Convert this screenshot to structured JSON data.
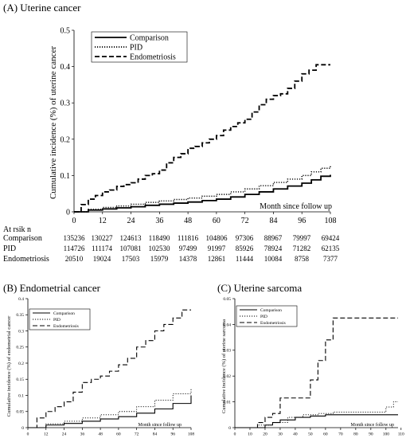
{
  "panels": [
    {
      "title": "(A) Uterine cancer",
      "chart_data": {
        "type": "line",
        "xlabel": "Month since follow up",
        "ylabel": "Cumulative incidence (%) of uterine cancer",
        "xlim": [
          0,
          108
        ],
        "ylim": [
          0,
          0.5
        ],
        "xticks": [
          0,
          12,
          24,
          36,
          48,
          60,
          72,
          84,
          96,
          108
        ],
        "yticks": [
          0,
          0.1,
          0.2,
          0.3,
          0.4,
          0.5
        ],
        "legend_position": "top-left",
        "series": [
          {
            "name": "Comparison",
            "style": "solid",
            "x": [
              0,
              6,
              12,
              18,
              24,
              30,
              36,
              42,
              48,
              54,
              60,
              66,
              72,
              78,
              84,
              90,
              96,
              100,
              104,
              108
            ],
            "y": [
              0,
              0.005,
              0.008,
              0.011,
              0.014,
              0.018,
              0.021,
              0.024,
              0.027,
              0.031,
              0.035,
              0.041,
              0.048,
              0.055,
              0.063,
              0.071,
              0.079,
              0.088,
              0.098,
              0.102
            ]
          },
          {
            "name": "PID",
            "style": "dotted",
            "x": [
              0,
              6,
              12,
              18,
              24,
              30,
              36,
              42,
              48,
              54,
              60,
              66,
              72,
              78,
              84,
              90,
              96,
              100,
              104,
              108
            ],
            "y": [
              0,
              0.007,
              0.012,
              0.016,
              0.021,
              0.026,
              0.03,
              0.034,
              0.038,
              0.043,
              0.048,
              0.055,
              0.063,
              0.072,
              0.081,
              0.09,
              0.1,
              0.11,
              0.12,
              0.128
            ]
          },
          {
            "name": "Endometriosis",
            "style": "dashed",
            "x": [
              0,
              3,
              6,
              9,
              12,
              15,
              18,
              21,
              24,
              27,
              30,
              33,
              36,
              39,
              42,
              45,
              48,
              51,
              54,
              57,
              60,
              63,
              66,
              69,
              72,
              75,
              78,
              81,
              84,
              87,
              90,
              93,
              96,
              99,
              102,
              105,
              108
            ],
            "y": [
              0,
              0.02,
              0.035,
              0.045,
              0.055,
              0.06,
              0.07,
              0.075,
              0.08,
              0.09,
              0.1,
              0.105,
              0.115,
              0.135,
              0.15,
              0.16,
              0.175,
              0.18,
              0.19,
              0.2,
              0.21,
              0.225,
              0.235,
              0.245,
              0.255,
              0.275,
              0.295,
              0.31,
              0.32,
              0.325,
              0.34,
              0.36,
              0.38,
              0.39,
              0.405,
              0.405,
              0.405
            ]
          }
        ]
      },
      "risk_table": {
        "title": "At rsik n",
        "rows": [
          {
            "label": "Comparison",
            "values": [
              "135236",
              "130227",
              "124613",
              "118490",
              "111816",
              "104806",
              "97306",
              "88967",
              "79997",
              "69424"
            ]
          },
          {
            "label": "PID",
            "values": [
              "114726",
              "111174",
              "107081",
              "102530",
              "97499",
              "91997",
              "85926",
              "78924",
              "71282",
              "62135"
            ]
          },
          {
            "label": "Endometriosis",
            "values": [
              "20510",
              "19024",
              "17503",
              "15979",
              "14378",
              "12861",
              "11444",
              "10084",
              "8758",
              "7377"
            ]
          }
        ]
      }
    },
    {
      "title": "(B) Endometrial cancer",
      "chart_data": {
        "type": "line",
        "xlabel": "Month since follow up",
        "ylabel": "Cumulative incidence (%) of endometrial cancer",
        "xlim": [
          0,
          108
        ],
        "ylim": [
          0,
          0.4
        ],
        "xticks": [
          0,
          12,
          24,
          36,
          48,
          60,
          72,
          84,
          96,
          108
        ],
        "yticks": [
          0,
          0.05,
          0.1,
          0.15,
          0.2,
          0.25,
          0.3,
          0.35,
          0.4
        ],
        "legend_position": "top-left",
        "series": [
          {
            "name": "Comparison",
            "style": "solid",
            "x": [
              0,
              12,
              24,
              36,
              48,
              60,
              72,
              84,
              96,
              108
            ],
            "y": [
              0,
              0.008,
              0.013,
              0.02,
              0.027,
              0.034,
              0.045,
              0.058,
              0.075,
              0.1
            ]
          },
          {
            "name": "PID",
            "style": "dotted",
            "x": [
              0,
              12,
              24,
              36,
              48,
              60,
              72,
              84,
              96,
              108
            ],
            "y": [
              0,
              0.012,
              0.02,
              0.03,
              0.04,
              0.05,
              0.065,
              0.085,
              0.105,
              0.12
            ]
          },
          {
            "name": "Endometriosis",
            "style": "dashed",
            "x": [
              0,
              6,
              12,
              18,
              24,
              30,
              36,
              42,
              48,
              54,
              60,
              66,
              72,
              78,
              84,
              90,
              96,
              102,
              108
            ],
            "y": [
              0,
              0.03,
              0.05,
              0.065,
              0.08,
              0.11,
              0.14,
              0.15,
              0.16,
              0.175,
              0.195,
              0.215,
              0.25,
              0.27,
              0.3,
              0.32,
              0.34,
              0.365,
              0.365
            ]
          }
        ]
      }
    },
    {
      "title": "(C) Uterine sarcoma",
      "chart_data": {
        "type": "line",
        "xlabel": "Month since follow up",
        "ylabel": "Cumulative incidence (%) of uterine sarcoma",
        "xlim": [
          0,
          108
        ],
        "ylim": [
          0,
          0.05
        ],
        "xticks": [
          0,
          10,
          20,
          30,
          40,
          50,
          60,
          70,
          80,
          90,
          100,
          110
        ],
        "yticks": [
          0,
          0.01,
          0.02,
          0.03,
          0.04,
          0.05
        ],
        "legend_position": "top-left",
        "series": [
          {
            "name": "Comparison",
            "style": "solid",
            "x": [
              0,
              20,
              25,
              30,
              40,
              50,
              60,
              108
            ],
            "y": [
              0,
              0.001,
              0.002,
              0.003,
              0.004,
              0.0045,
              0.005,
              0.005
            ]
          },
          {
            "name": "PID",
            "style": "dotted",
            "x": [
              0,
              15,
              25,
              35,
              45,
              55,
              65,
              80,
              95,
              100,
              105,
              108
            ],
            "y": [
              0,
              0.001,
              0.002,
              0.004,
              0.005,
              0.0055,
              0.006,
              0.006,
              0.006,
              0.008,
              0.01,
              0.01
            ]
          },
          {
            "name": "Endometriosis",
            "style": "dashed",
            "x": [
              0,
              15,
              20,
              25,
              30,
              45,
              50,
              55,
              60,
              65,
              108
            ],
            "y": [
              0,
              0.002,
              0.004,
              0.0055,
              0.0115,
              0.0115,
              0.0185,
              0.026,
              0.034,
              0.0425,
              0.0425
            ]
          }
        ]
      }
    }
  ]
}
